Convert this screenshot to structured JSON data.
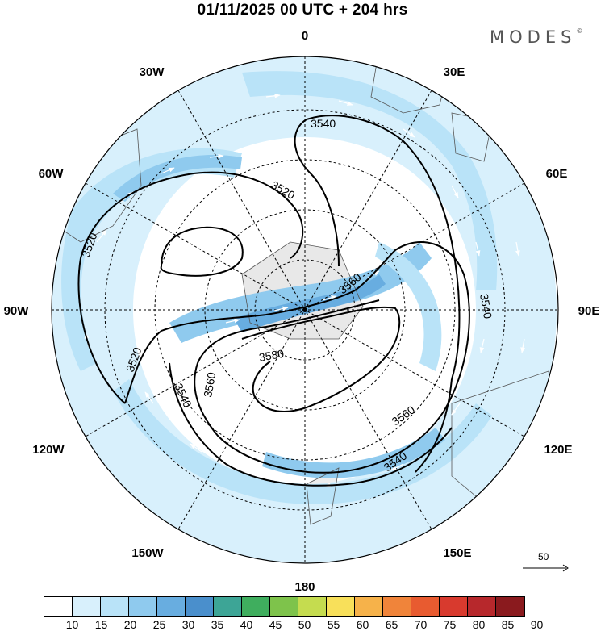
{
  "title": "01/11/2025  00 UTC  + 204 hrs",
  "logo": "MODES",
  "logo_mark": "©",
  "longitude_labels": {
    "top": "0",
    "bottom": "180",
    "l30w": "30W",
    "l60w": "60W",
    "l90w": "90W",
    "l120w": "120W",
    "l150w": "150W",
    "l30e": "30E",
    "l60e": "60E",
    "l90e": "90E",
    "l120e": "120E",
    "l150e": "150E"
  },
  "contours": [
    {
      "name": "contour-3540-north",
      "label": "3540"
    },
    {
      "name": "contour-3520-west",
      "label": "3520"
    },
    {
      "name": "contour-3520-inner",
      "label": "3520"
    },
    {
      "name": "contour-3520-southwest",
      "label": "3520"
    },
    {
      "name": "contour-3560-center",
      "label": "3560"
    },
    {
      "name": "contour-3560-southeast",
      "label": "3560"
    },
    {
      "name": "contour-3560-southwest",
      "label": "3560"
    },
    {
      "name": "contour-3580",
      "label": "3580"
    },
    {
      "name": "contour-3540-east",
      "label": "3540"
    },
    {
      "name": "contour-3540-southwest",
      "label": "3540"
    },
    {
      "name": "contour-3540-southeast",
      "label": "3540"
    }
  ],
  "wind_reference": {
    "value": "50"
  },
  "colorbar": {
    "ticks": [
      "10",
      "15",
      "20",
      "25",
      "30",
      "35",
      "40",
      "45",
      "50",
      "55",
      "60",
      "65",
      "70",
      "75",
      "80",
      "85",
      "90"
    ],
    "colors": [
      "#ffffff",
      "#d8f0fc",
      "#b9e3f8",
      "#8fcaee",
      "#68ade0",
      "#4a8fcc",
      "#3da596",
      "#3fae5e",
      "#7ec34b",
      "#c5dc4f",
      "#f8e05a",
      "#f6b24a",
      "#f0843a",
      "#e85b30",
      "#d83a2e",
      "#b7282c",
      "#8a1a1e"
    ]
  }
}
